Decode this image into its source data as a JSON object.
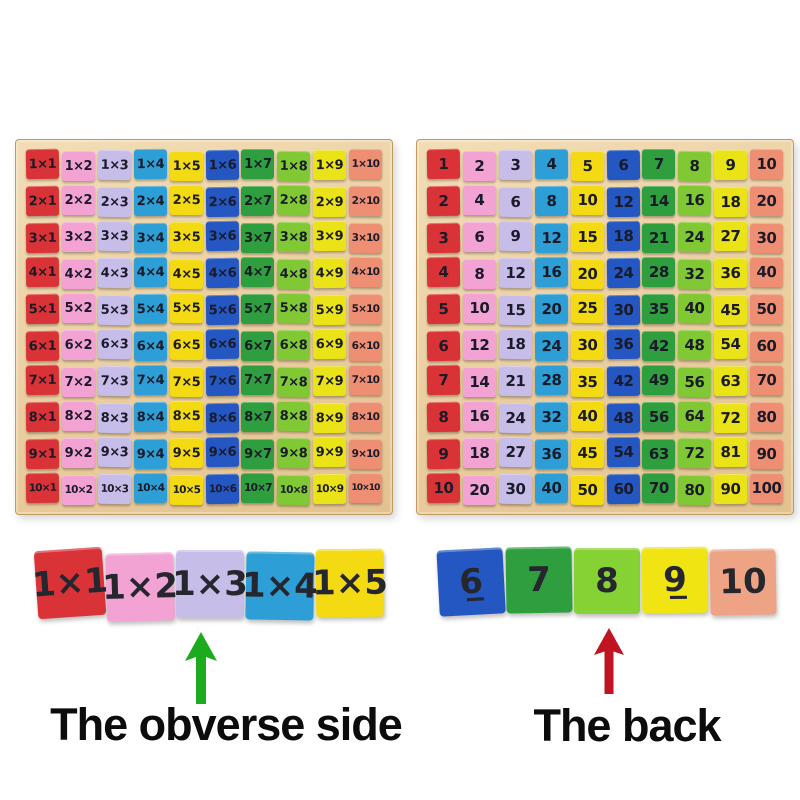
{
  "scene": {
    "background": "#ffffff",
    "caption_obverse": "The obverse side",
    "caption_back": "The back",
    "arrow_green_color": "#1cab1c",
    "arrow_red_color": "#c11422",
    "wood_color": "#e8cda5"
  },
  "column_colors": [
    "#d93338",
    "#f2a3d4",
    "#c7bde9",
    "#2d9fd6",
    "#f3da12",
    "#2457c1",
    "#2f9e3f",
    "#80c934",
    "#e9e318",
    "#ee8f74"
  ],
  "boards": {
    "obverse": {
      "rows": [
        [
          "1×1",
          "1×2",
          "1×3",
          "1×4",
          "1×5",
          "1×6",
          "1×7",
          "1×8",
          "1×9",
          "1×10"
        ],
        [
          "2×1",
          "2×2",
          "2×3",
          "2×4",
          "2×5",
          "2×6",
          "2×7",
          "2×8",
          "2×9",
          "2×10"
        ],
        [
          "3×1",
          "3×2",
          "3×3",
          "3×4",
          "3×5",
          "3×6",
          "3×7",
          "3×8",
          "3×9",
          "3×10"
        ],
        [
          "4×1",
          "4×2",
          "4×3",
          "4×4",
          "4×5",
          "4×6",
          "4×7",
          "4×8",
          "4×9",
          "4×10"
        ],
        [
          "5×1",
          "5×2",
          "5×3",
          "5×4",
          "5×5",
          "5×6",
          "5×7",
          "5×8",
          "5×9",
          "5×10"
        ],
        [
          "6×1",
          "6×2",
          "6×3",
          "6×4",
          "6×5",
          "6×6",
          "6×7",
          "6×8",
          "6×9",
          "6×10"
        ],
        [
          "7×1",
          "7×2",
          "7×3",
          "7×4",
          "7×5",
          "7×6",
          "7×7",
          "7×8",
          "7×9",
          "7×10"
        ],
        [
          "8×1",
          "8×2",
          "8×3",
          "8×4",
          "8×5",
          "8×6",
          "8×7",
          "8×8",
          "8×9",
          "8×10"
        ],
        [
          "9×1",
          "9×2",
          "9×3",
          "9×4",
          "9×5",
          "9×6",
          "9×7",
          "9×8",
          "9×9",
          "9×10"
        ],
        [
          "10×1",
          "10×2",
          "10×3",
          "10×4",
          "10×5",
          "10×6",
          "10×7",
          "10×8",
          "10×9",
          "10×10"
        ]
      ]
    },
    "back": {
      "rows": [
        [
          "1",
          "2",
          "3",
          "4",
          "5",
          "6",
          "7",
          "8",
          "9",
          "10"
        ],
        [
          "2",
          "4",
          "6",
          "8",
          "10",
          "12",
          "14",
          "16",
          "18",
          "20"
        ],
        [
          "3",
          "6",
          "9",
          "12",
          "15",
          "18",
          "21",
          "24",
          "27",
          "30"
        ],
        [
          "4",
          "8",
          "12",
          "16",
          "20",
          "24",
          "28",
          "32",
          "36",
          "40"
        ],
        [
          "5",
          "10",
          "15",
          "20",
          "25",
          "30",
          "35",
          "40",
          "45",
          "50"
        ],
        [
          "6",
          "12",
          "18",
          "24",
          "30",
          "36",
          "42",
          "48",
          "54",
          "60"
        ],
        [
          "7",
          "14",
          "21",
          "28",
          "35",
          "42",
          "49",
          "56",
          "63",
          "70"
        ],
        [
          "8",
          "16",
          "24",
          "32",
          "40",
          "48",
          "56",
          "64",
          "72",
          "80"
        ],
        [
          "9",
          "18",
          "27",
          "36",
          "45",
          "54",
          "63",
          "72",
          "81",
          "90"
        ],
        [
          "10",
          "20",
          "30",
          "40",
          "50",
          "60",
          "70",
          "80",
          "90",
          "100"
        ]
      ]
    }
  },
  "legend": {
    "obverse_blocks": [
      {
        "label": "1×1",
        "color": "#d93338"
      },
      {
        "label": "1×2",
        "color": "#f2a3d4"
      },
      {
        "label": "1×3",
        "color": "#c7bde9"
      },
      {
        "label": "1×4",
        "color": "#2d9fd6"
      },
      {
        "label": "1×5",
        "color": "#f3da12"
      }
    ],
    "back_blocks": [
      {
        "label": "6̲",
        "color": "#2457c1"
      },
      {
        "label": "7",
        "color": "#2f9e3f"
      },
      {
        "label": "8",
        "color": "#86d133"
      },
      {
        "label": "9̲",
        "color": "#f0e512"
      },
      {
        "label": "10",
        "color": "#eda384"
      }
    ]
  }
}
